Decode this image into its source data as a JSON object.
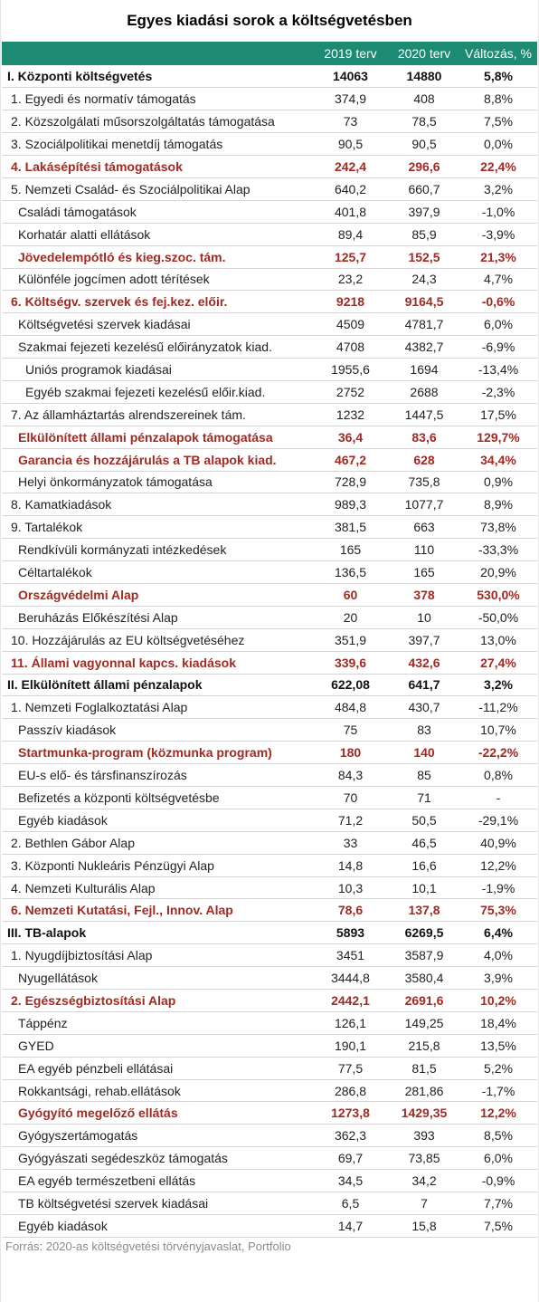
{
  "title": "Egyes kiadási sorok a költségvetésben",
  "columns": [
    "",
    "2019 terv",
    "2020 terv",
    "Változás, %"
  ],
  "rows": [
    {
      "label": "I. Központi költségvetés",
      "v2019": "14063",
      "v2020": "14880",
      "change": "5,8%",
      "style": "bold",
      "level": 0
    },
    {
      "label": "1. Egyedi és normatív támogatás",
      "v2019": "374,9",
      "v2020": "408",
      "change": "8,8%",
      "style": "normal",
      "level": 1
    },
    {
      "label": "2. Közszolgálati műsorszolgáltatás támogatása",
      "v2019": "73",
      "v2020": "78,5",
      "change": "7,5%",
      "style": "normal",
      "level": 1
    },
    {
      "label": "3. Szociálpolitikai menetdíj támogatás",
      "v2019": "90,5",
      "v2020": "90,5",
      "change": "0,0%",
      "style": "normal",
      "level": 1
    },
    {
      "label": "4. Lakásépítési támogatások",
      "v2019": "242,4",
      "v2020": "296,6",
      "change": "22,4%",
      "style": "hl",
      "level": 1
    },
    {
      "label": "5. Nemzeti Család- és Szociálpolitikai Alap",
      "v2019": "640,2",
      "v2020": "660,7",
      "change": "3,2%",
      "style": "normal",
      "level": 1
    },
    {
      "label": "Családi támogatások",
      "v2019": "401,8",
      "v2020": "397,9",
      "change": "-1,0%",
      "style": "normal",
      "level": 2
    },
    {
      "label": "Korhatár alatti ellátások",
      "v2019": "89,4",
      "v2020": "85,9",
      "change": "-3,9%",
      "style": "normal",
      "level": 2
    },
    {
      "label": "Jövedelempótló és kieg.szoc. tám.",
      "v2019": "125,7",
      "v2020": "152,5",
      "change": "21,3%",
      "style": "hl",
      "level": 2
    },
    {
      "label": "Különféle jogcímen adott térítések",
      "v2019": "23,2",
      "v2020": "24,3",
      "change": "4,7%",
      "style": "normal",
      "level": 2
    },
    {
      "label": "6. Költségv. szervek és fej.kez. előir.",
      "v2019": "9218",
      "v2020": "9164,5",
      "change": "-0,6%",
      "style": "hl",
      "level": 1
    },
    {
      "label": "Költségvetési szervek kiadásai",
      "v2019": "4509",
      "v2020": "4781,7",
      "change": "6,0%",
      "style": "normal",
      "level": 2
    },
    {
      "label": "Szakmai fejezeti kezelésű előirányzatok kiad.",
      "v2019": "4708",
      "v2020": "4382,7",
      "change": "-6,9%",
      "style": "normal",
      "level": 2
    },
    {
      "label": "Uniós programok kiadásai",
      "v2019": "1955,6",
      "v2020": "1694",
      "change": "-13,4%",
      "style": "normal",
      "level": 3
    },
    {
      "label": "Egyéb szakmai fejezeti kezelésű előir.kiad.",
      "v2019": "2752",
      "v2020": "2688",
      "change": "-2,3%",
      "style": "normal",
      "level": 3
    },
    {
      "label": "7. Az államháztartás alrendszereinek tám.",
      "v2019": "1232",
      "v2020": "1447,5",
      "change": "17,5%",
      "style": "normal",
      "level": 1
    },
    {
      "label": "Elkülönített állami pénzalapok támogatása",
      "v2019": "36,4",
      "v2020": "83,6",
      "change": "129,7%",
      "style": "hl",
      "level": 2
    },
    {
      "label": "Garancia és hozzájárulás a TB alapok kiad.",
      "v2019": "467,2",
      "v2020": "628",
      "change": "34,4%",
      "style": "hl",
      "level": 2
    },
    {
      "label": "Helyi önkormányzatok támogatása",
      "v2019": "728,9",
      "v2020": "735,8",
      "change": "0,9%",
      "style": "normal",
      "level": 2
    },
    {
      "label": "8. Kamatkiadások",
      "v2019": "989,3",
      "v2020": "1077,7",
      "change": "8,9%",
      "style": "normal",
      "level": 1
    },
    {
      "label": "9. Tartalékok",
      "v2019": "381,5",
      "v2020": "663",
      "change": "73,8%",
      "style": "normal",
      "level": 1
    },
    {
      "label": "Rendkívüli kormányzati intézkedések",
      "v2019": "165",
      "v2020": "110",
      "change": "-33,3%",
      "style": "normal",
      "level": 2
    },
    {
      "label": "Céltartalékok",
      "v2019": "136,5",
      "v2020": "165",
      "change": "20,9%",
      "style": "normal",
      "level": 2
    },
    {
      "label": "Országvédelmi Alap",
      "v2019": "60",
      "v2020": "378",
      "change": "530,0%",
      "style": "hl",
      "level": 2
    },
    {
      "label": "Beruházás Előkészítési Alap",
      "v2019": "20",
      "v2020": "10",
      "change": "-50,0%",
      "style": "normal",
      "level": 2
    },
    {
      "label": "10. Hozzájárulás az EU költségvetéséhez",
      "v2019": "351,9",
      "v2020": "397,7",
      "change": "13,0%",
      "style": "normal",
      "level": 1
    },
    {
      "label": "11. Állami vagyonnal kapcs. kiadások",
      "v2019": "339,6",
      "v2020": "432,6",
      "change": "27,4%",
      "style": "hl",
      "level": 1
    },
    {
      "label": "II. Elkülönített állami pénzalapok",
      "v2019": "622,08",
      "v2020": "641,7",
      "change": "3,2%",
      "style": "bold",
      "level": 0
    },
    {
      "label": "1. Nemzeti Foglalkoztatási Alap",
      "v2019": "484,8",
      "v2020": "430,7",
      "change": "-11,2%",
      "style": "normal",
      "level": 1
    },
    {
      "label": "Passzív kiadások",
      "v2019": "75",
      "v2020": "83",
      "change": "10,7%",
      "style": "normal",
      "level": 2
    },
    {
      "label": "Startmunka-program (közmunka program)",
      "v2019": "180",
      "v2020": "140",
      "change": "-22,2%",
      "style": "hl",
      "level": 2
    },
    {
      "label": "EU-s elő- és társfinanszírozás",
      "v2019": "84,3",
      "v2020": "85",
      "change": "0,8%",
      "style": "normal",
      "level": 2
    },
    {
      "label": "Befizetés a központi költségvetésbe",
      "v2019": "70",
      "v2020": "71",
      "change": "-",
      "style": "normal",
      "level": 2
    },
    {
      "label": "Egyéb kiadások",
      "v2019": "71,2",
      "v2020": "50,5",
      "change": "-29,1%",
      "style": "normal",
      "level": 2
    },
    {
      "label": "2. Bethlen Gábor Alap",
      "v2019": "33",
      "v2020": "46,5",
      "change": "40,9%",
      "style": "normal",
      "level": 1
    },
    {
      "label": "3. Központi Nukleáris Pénzügyi Alap",
      "v2019": "14,8",
      "v2020": "16,6",
      "change": "12,2%",
      "style": "normal",
      "level": 1
    },
    {
      "label": "4. Nemzeti Kulturális Alap",
      "v2019": "10,3",
      "v2020": "10,1",
      "change": "-1,9%",
      "style": "normal",
      "level": 1
    },
    {
      "label": "6. Nemzeti Kutatási, Fejl., Innov. Alap",
      "v2019": "78,6",
      "v2020": "137,8",
      "change": "75,3%",
      "style": "hl",
      "level": 1
    },
    {
      "label": "III. TB-alapok",
      "v2019": "5893",
      "v2020": "6269,5",
      "change": "6,4%",
      "style": "bold",
      "level": 0
    },
    {
      "label": "1. Nyugdíjbiztosítási Alap",
      "v2019": "3451",
      "v2020": "3587,9",
      "change": "4,0%",
      "style": "normal",
      "level": 1
    },
    {
      "label": "Nyugellátások",
      "v2019": "3444,8",
      "v2020": "3580,4",
      "change": "3,9%",
      "style": "normal",
      "level": 2
    },
    {
      "label": "2. Egészségbiztosítási Alap",
      "v2019": "2442,1",
      "v2020": "2691,6",
      "change": "10,2%",
      "style": "hl",
      "level": 1
    },
    {
      "label": "Táppénz",
      "v2019": "126,1",
      "v2020": "149,25",
      "change": "18,4%",
      "style": "normal",
      "level": 2
    },
    {
      "label": "GYED",
      "v2019": "190,1",
      "v2020": "215,8",
      "change": "13,5%",
      "style": "normal",
      "level": 2
    },
    {
      "label": "EA egyéb pénzbeli ellátásai",
      "v2019": "77,5",
      "v2020": "81,5",
      "change": "5,2%",
      "style": "normal",
      "level": 2
    },
    {
      "label": "Rokkantsági, rehab.ellátások",
      "v2019": "286,8",
      "v2020": "281,86",
      "change": "-1,7%",
      "style": "normal",
      "level": 2
    },
    {
      "label": "Gyógyító megelőző ellátás",
      "v2019": "1273,8",
      "v2020": "1429,35",
      "change": "12,2%",
      "style": "hl",
      "level": 2
    },
    {
      "label": "Gyógyszertámogatás",
      "v2019": "362,3",
      "v2020": "393",
      "change": "8,5%",
      "style": "normal",
      "level": 2
    },
    {
      "label": "Gyógyászati segédeszköz támogatás",
      "v2019": "69,7",
      "v2020": "73,85",
      "change": "6,0%",
      "style": "normal",
      "level": 2
    },
    {
      "label": "EA egyéb természetbeni ellátás",
      "v2019": "34,5",
      "v2020": "34,2",
      "change": "-0,9%",
      "style": "normal",
      "level": 2
    },
    {
      "label": "TB költségvetési szervek kiadásai",
      "v2019": "6,5",
      "v2020": "7",
      "change": "7,7%",
      "style": "normal",
      "level": 2
    },
    {
      "label": "Egyéb kiadások",
      "v2019": "14,7",
      "v2020": "15,8",
      "change": "7,5%",
      "style": "normal",
      "level": 2
    }
  ],
  "source": "Forrás: 2020-as költségvetési törvényjavaslat, Portfolio",
  "colors": {
    "header_bg": "#1d8a73",
    "highlight_text": "#a12a22"
  }
}
